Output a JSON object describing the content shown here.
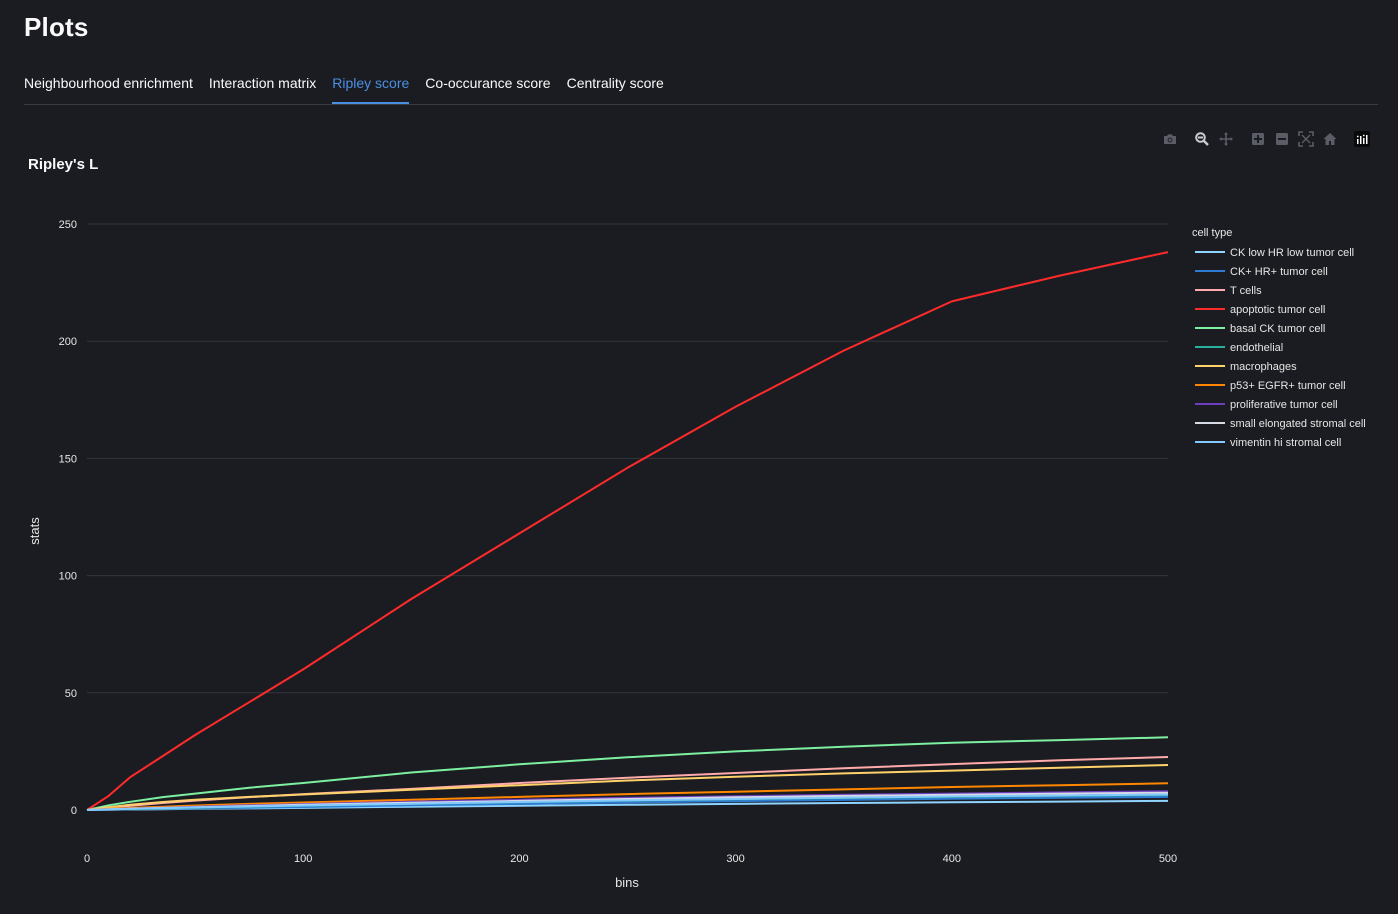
{
  "page": {
    "title": "Plots"
  },
  "tabs": [
    {
      "label": "Neighbourhood enrichment",
      "active": false
    },
    {
      "label": "Interaction matrix",
      "active": false
    },
    {
      "label": "Ripley score",
      "active": true
    },
    {
      "label": "Co-occurance score",
      "active": false
    },
    {
      "label": "Centrality score",
      "active": false
    }
  ],
  "toolbar": {
    "icons": [
      "camera-icon",
      "zoom-icon",
      "pan-icon",
      "zoom-in-icon",
      "zoom-out-icon",
      "autoscale-icon",
      "reset-axes-icon",
      "plotly-logo-icon"
    ]
  },
  "colors": {
    "background": "#1b1c21",
    "accent": "#4a90e2",
    "grid": "#33353d"
  },
  "chart_data": {
    "type": "line",
    "title": "Ripley's L",
    "xlabel": "bins",
    "ylabel": "stats",
    "xlim": [
      0,
      500
    ],
    "ylim": [
      0,
      250
    ],
    "xticks": [
      0,
      100,
      200,
      300,
      400,
      500
    ],
    "yticks": [
      0,
      50,
      100,
      150,
      200,
      250
    ],
    "grid": true,
    "legend_title": "cell type",
    "legend_position": "right",
    "x": [
      0,
      10,
      20,
      35,
      50,
      75,
      100,
      150,
      200,
      250,
      300,
      350,
      400,
      450,
      500
    ],
    "series": [
      {
        "name": "CK low HR low tumor cell",
        "color": "#8fd3ff",
        "values": [
          0,
          0.1,
          0.2,
          0.3,
          0.5,
          0.7,
          0.9,
          1.4,
          1.8,
          2.2,
          2.6,
          3.0,
          3.3,
          3.6,
          3.9
        ]
      },
      {
        "name": "CK+ HR+ tumor cell",
        "color": "#2e7bd4",
        "values": [
          0,
          0.15,
          0.3,
          0.5,
          0.7,
          1.0,
          1.3,
          2.0,
          2.6,
          3.2,
          3.8,
          4.3,
          4.8,
          5.2,
          5.6
        ]
      },
      {
        "name": "T cells",
        "color": "#ffabab",
        "values": [
          0,
          1.0,
          1.8,
          3.0,
          4.0,
          5.5,
          6.8,
          9.0,
          11.5,
          13.8,
          15.8,
          17.8,
          19.6,
          21.2,
          22.6
        ]
      },
      {
        "name": "apoptotic tumor cell",
        "color": "#ff2b2b",
        "values": [
          0,
          6,
          14,
          23,
          32,
          46,
          60,
          90,
          118,
          146,
          172,
          196,
          217,
          228,
          238
        ]
      },
      {
        "name": "basal CK tumor cell",
        "color": "#7defa1",
        "values": [
          0,
          2.0,
          3.5,
          5.5,
          7.0,
          9.5,
          11.5,
          16.0,
          19.5,
          22.5,
          25.0,
          27.0,
          28.7,
          29.8,
          31.0
        ]
      },
      {
        "name": "endothelial",
        "color": "#29b09d",
        "values": [
          0,
          0.2,
          0.4,
          0.7,
          1.0,
          1.4,
          1.8,
          2.6,
          3.3,
          4.0,
          4.6,
          5.1,
          5.6,
          6.0,
          6.4
        ]
      },
      {
        "name": "macrophages",
        "color": "#ffd16a",
        "values": [
          0,
          1.2,
          2.2,
          3.4,
          4.4,
          5.6,
          6.6,
          8.6,
          10.6,
          12.6,
          14.2,
          15.6,
          16.8,
          18.0,
          19.2
        ]
      },
      {
        "name": "p53+ EGFR+ tumor cell",
        "color": "#ff8700",
        "values": [
          0,
          0.5,
          0.9,
          1.4,
          1.9,
          2.6,
          3.2,
          4.4,
          5.6,
          6.8,
          7.8,
          8.8,
          9.8,
          10.6,
          11.4
        ]
      },
      {
        "name": "proliferative tumor cell",
        "color": "#6d3fc0",
        "values": [
          0,
          0.3,
          0.6,
          1.0,
          1.4,
          2.0,
          2.5,
          3.5,
          4.4,
          5.2,
          5.9,
          6.5,
          7.0,
          7.5,
          8.0
        ]
      },
      {
        "name": "small elongated stromal cell",
        "color": "#d5dae5",
        "values": [
          0,
          0.3,
          0.5,
          0.9,
          1.2,
          1.7,
          2.2,
          3.1,
          3.9,
          4.7,
          5.4,
          6.0,
          6.5,
          7.0,
          7.4
        ]
      },
      {
        "name": "vimentin hi stromal cell",
        "color": "#83c9ff",
        "values": [
          0,
          0.25,
          0.5,
          0.8,
          1.1,
          1.5,
          1.9,
          2.7,
          3.4,
          4.1,
          4.7,
          5.3,
          5.8,
          6.2,
          6.6
        ]
      }
    ]
  }
}
